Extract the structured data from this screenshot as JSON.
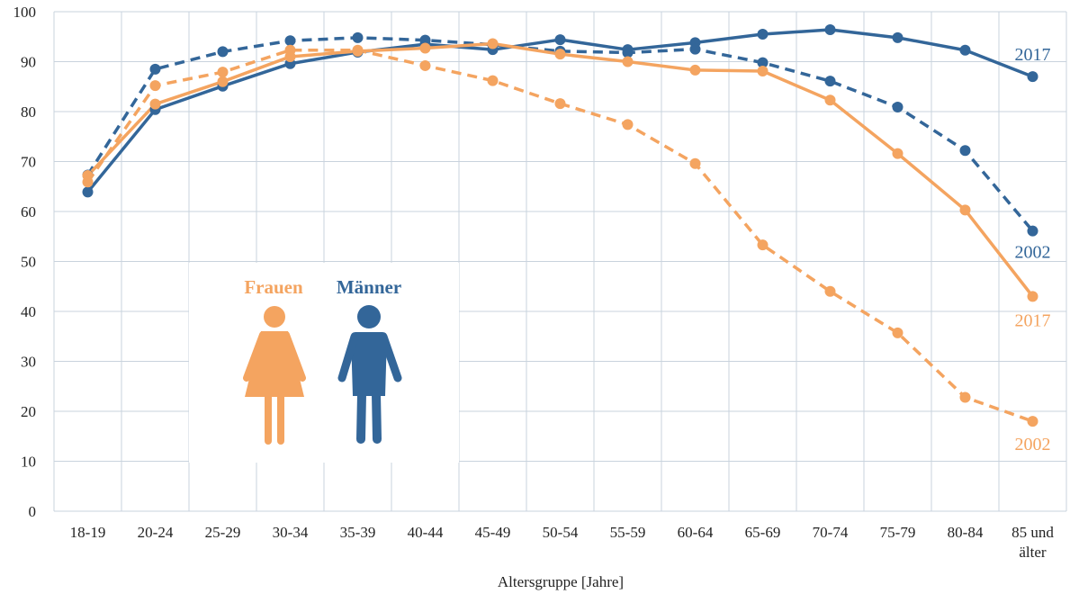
{
  "chart_data": {
    "type": "line",
    "title": "",
    "xlabel": "Altersgruppe [Jahre]",
    "ylabel": "",
    "ylim": [
      0,
      100
    ],
    "yticks": [
      0,
      10,
      20,
      30,
      40,
      50,
      60,
      70,
      80,
      90,
      100
    ],
    "grid": true,
    "categories": [
      "18-19",
      "20-24",
      "25-29",
      "30-34",
      "35-39",
      "40-44",
      "45-49",
      "50-54",
      "55-59",
      "60-64",
      "65-69",
      "70-74",
      "75-79",
      "80-84",
      "85 und älter"
    ],
    "legend": [
      {
        "label": "Frauen",
        "color": "#f4a460"
      },
      {
        "label": "Männer",
        "color": "#336699"
      }
    ],
    "series": [
      {
        "group": "Männer",
        "year": "2017",
        "style": "solid",
        "color": "#336699",
        "values": [
          63.9,
          80.4,
          85.1,
          89.6,
          91.9,
          93.5,
          92.4,
          94.4,
          92.4,
          93.8,
          95.5,
          96.4,
          94.8,
          92.3,
          87.0
        ]
      },
      {
        "group": "Männer",
        "year": "2002",
        "style": "dashed",
        "color": "#336699",
        "values": [
          67.3,
          88.5,
          92.0,
          94.2,
          94.8,
          94.3,
          93.4,
          92.1,
          91.8,
          92.5,
          89.8,
          86.1,
          80.9,
          72.2,
          56.1
        ]
      },
      {
        "group": "Frauen",
        "year": "2017",
        "style": "solid",
        "color": "#f4a460",
        "values": [
          67.2,
          81.5,
          86.0,
          91.0,
          92.1,
          92.7,
          93.6,
          91.5,
          90.0,
          88.3,
          88.1,
          82.3,
          71.6,
          60.3,
          43.0
        ]
      },
      {
        "group": "Frauen",
        "year": "2002",
        "style": "dashed",
        "color": "#f4a460",
        "values": [
          65.9,
          85.2,
          87.9,
          92.3,
          92.3,
          89.2,
          86.2,
          81.6,
          77.4,
          69.6,
          53.3,
          44.0,
          35.7,
          22.8,
          18.0
        ]
      }
    ]
  }
}
